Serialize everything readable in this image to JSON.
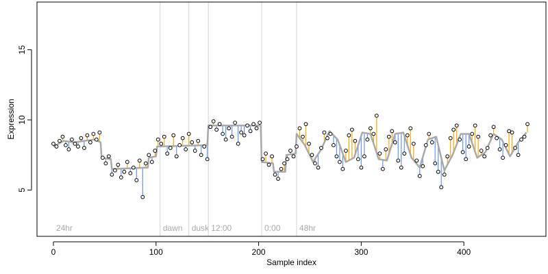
{
  "chart_data": {
    "type": "scatter",
    "title": "",
    "xlabel": "Sample index",
    "ylabel": "Expression",
    "xlim": [
      -16,
      480
    ],
    "ylim": [
      1.7,
      18.4
    ],
    "x_ticks": [
      0,
      100,
      200,
      300,
      400
    ],
    "y_ticks": [
      5,
      10,
      15
    ],
    "grid": false,
    "legend": "none",
    "colors": {
      "points_stroke": "#000000",
      "points_fill": "#ffffff",
      "fit_line": "#a9a9a9",
      "residual_above": "#ffa500",
      "residual_below": "#6495ed",
      "region_line": "#d3d3d3",
      "region_label": "#a9a9a9"
    },
    "regions": [
      {
        "label": "24hr",
        "x": 0
      },
      {
        "label": "dawn",
        "x": 104
      },
      {
        "label": "dusk",
        "x": 132
      },
      {
        "label": "12:00",
        "x": 151
      },
      {
        "label": "0:00",
        "x": 203
      },
      {
        "label": "48hr",
        "x": 237
      }
    ],
    "series": [
      {
        "name": "",
        "note": "fitted (grey line) and observed (open circles) expression per sample index; full per-sample list below",
        "fitted": [
          {
            "x": 0,
            "y": 8.1
          },
          {
            "x": 10,
            "y": 8.5
          },
          {
            "x": 20,
            "y": 8.4
          },
          {
            "x": 30,
            "y": 8.5
          },
          {
            "x": 40,
            "y": 8.6
          },
          {
            "x": 46,
            "y": 8.4
          },
          {
            "x": 47,
            "y": 7.3
          },
          {
            "x": 56,
            "y": 7.2
          },
          {
            "x": 57,
            "y": 6.5
          },
          {
            "x": 92,
            "y": 6.6
          },
          {
            "x": 93,
            "y": 7.3
          },
          {
            "x": 100,
            "y": 7.4
          },
          {
            "x": 101,
            "y": 8.1
          },
          {
            "x": 150,
            "y": 8.2
          },
          {
            "x": 151,
            "y": 9.6
          },
          {
            "x": 202,
            "y": 9.6
          },
          {
            "x": 203,
            "y": 7.0
          },
          {
            "x": 214,
            "y": 6.9
          },
          {
            "x": 215,
            "y": 6.3
          },
          {
            "x": 226,
            "y": 6.3
          },
          {
            "x": 227,
            "y": 7.5
          },
          {
            "x": 236,
            "y": 7.6
          },
          {
            "x": 237,
            "y": 9.0
          },
          {
            "x": 245,
            "y": 8.2
          },
          {
            "x": 253,
            "y": 7.0
          },
          {
            "x": 261,
            "y": 7.9
          },
          {
            "x": 269,
            "y": 9.2
          },
          {
            "x": 277,
            "y": 8.6
          },
          {
            "x": 285,
            "y": 7.0
          },
          {
            "x": 293,
            "y": 7.3
          },
          {
            "x": 301,
            "y": 9.1
          },
          {
            "x": 309,
            "y": 9.0
          },
          {
            "x": 317,
            "y": 7.2
          },
          {
            "x": 325,
            "y": 7.1
          },
          {
            "x": 333,
            "y": 9.0
          },
          {
            "x": 341,
            "y": 9.1
          },
          {
            "x": 349,
            "y": 7.3
          },
          {
            "x": 357,
            "y": 6.6
          },
          {
            "x": 365,
            "y": 8.6
          },
          {
            "x": 373,
            "y": 8.8
          },
          {
            "x": 381,
            "y": 6.4
          },
          {
            "x": 389,
            "y": 7.5
          },
          {
            "x": 397,
            "y": 9.0
          },
          {
            "x": 405,
            "y": 9.0
          },
          {
            "x": 413,
            "y": 7.3
          },
          {
            "x": 421,
            "y": 7.7
          },
          {
            "x": 429,
            "y": 9.0
          },
          {
            "x": 437,
            "y": 8.6
          },
          {
            "x": 445,
            "y": 7.4
          },
          {
            "x": 453,
            "y": 8.4
          },
          {
            "x": 461,
            "y": 9.1
          }
        ],
        "observed": [
          {
            "x": 0,
            "y": 8.3
          },
          {
            "x": 3,
            "y": 8.1
          },
          {
            "x": 6,
            "y": 8.5
          },
          {
            "x": 9,
            "y": 8.8
          },
          {
            "x": 12,
            "y": 8.2
          },
          {
            "x": 15,
            "y": 7.9
          },
          {
            "x": 18,
            "y": 8.6
          },
          {
            "x": 21,
            "y": 8.3
          },
          {
            "x": 24,
            "y": 8.1
          },
          {
            "x": 27,
            "y": 8.7
          },
          {
            "x": 30,
            "y": 8.0
          },
          {
            "x": 33,
            "y": 8.9
          },
          {
            "x": 36,
            "y": 8.4
          },
          {
            "x": 39,
            "y": 9.0
          },
          {
            "x": 42,
            "y": 8.6
          },
          {
            "x": 45,
            "y": 9.1
          },
          {
            "x": 48,
            "y": 7.3
          },
          {
            "x": 51,
            "y": 6.9
          },
          {
            "x": 54,
            "y": 7.4
          },
          {
            "x": 57,
            "y": 6.1
          },
          {
            "x": 60,
            "y": 6.4
          },
          {
            "x": 63,
            "y": 6.8
          },
          {
            "x": 66,
            "y": 5.9
          },
          {
            "x": 69,
            "y": 6.3
          },
          {
            "x": 72,
            "y": 7.0
          },
          {
            "x": 75,
            "y": 6.2
          },
          {
            "x": 78,
            "y": 6.6
          },
          {
            "x": 81,
            "y": 5.7
          },
          {
            "x": 84,
            "y": 7.1
          },
          {
            "x": 87,
            "y": 4.5
          },
          {
            "x": 90,
            "y": 6.9
          },
          {
            "x": 93,
            "y": 7.5
          },
          {
            "x": 96,
            "y": 7.0
          },
          {
            "x": 99,
            "y": 7.8
          },
          {
            "x": 102,
            "y": 8.6
          },
          {
            "x": 105,
            "y": 8.3
          },
          {
            "x": 108,
            "y": 8.8
          },
          {
            "x": 111,
            "y": 7.6
          },
          {
            "x": 114,
            "y": 8.0
          },
          {
            "x": 117,
            "y": 8.9
          },
          {
            "x": 120,
            "y": 7.4
          },
          {
            "x": 123,
            "y": 8.2
          },
          {
            "x": 126,
            "y": 8.7
          },
          {
            "x": 129,
            "y": 7.9
          },
          {
            "x": 132,
            "y": 9.0
          },
          {
            "x": 135,
            "y": 8.4
          },
          {
            "x": 138,
            "y": 7.8
          },
          {
            "x": 141,
            "y": 8.5
          },
          {
            "x": 144,
            "y": 7.5
          },
          {
            "x": 147,
            "y": 8.1
          },
          {
            "x": 150,
            "y": 7.2
          },
          {
            "x": 153,
            "y": 9.5
          },
          {
            "x": 156,
            "y": 9.9
          },
          {
            "x": 159,
            "y": 9.3
          },
          {
            "x": 162,
            "y": 9.7
          },
          {
            "x": 165,
            "y": 9.0
          },
          {
            "x": 168,
            "y": 8.6
          },
          {
            "x": 171,
            "y": 9.4
          },
          {
            "x": 174,
            "y": 8.8
          },
          {
            "x": 177,
            "y": 9.8
          },
          {
            "x": 180,
            "y": 8.3
          },
          {
            "x": 183,
            "y": 9.1
          },
          {
            "x": 186,
            "y": 8.9
          },
          {
            "x": 189,
            "y": 9.6
          },
          {
            "x": 192,
            "y": 9.2
          },
          {
            "x": 195,
            "y": 9.7
          },
          {
            "x": 198,
            "y": 9.4
          },
          {
            "x": 201,
            "y": 9.8
          },
          {
            "x": 204,
            "y": 7.2
          },
          {
            "x": 207,
            "y": 7.6
          },
          {
            "x": 210,
            "y": 6.8
          },
          {
            "x": 213,
            "y": 7.4
          },
          {
            "x": 216,
            "y": 6.1
          },
          {
            "x": 219,
            "y": 5.8
          },
          {
            "x": 222,
            "y": 6.5
          },
          {
            "x": 225,
            "y": 6.9
          },
          {
            "x": 228,
            "y": 7.2
          },
          {
            "x": 231,
            "y": 7.8
          },
          {
            "x": 234,
            "y": 7.4
          },
          {
            "x": 237,
            "y": 8.1
          },
          {
            "x": 240,
            "y": 9.4
          },
          {
            "x": 243,
            "y": 8.8
          },
          {
            "x": 246,
            "y": 9.7
          },
          {
            "x": 249,
            "y": 8.3
          },
          {
            "x": 252,
            "y": 7.5
          },
          {
            "x": 255,
            "y": 6.9
          },
          {
            "x": 258,
            "y": 6.6
          },
          {
            "x": 261,
            "y": 8.0
          },
          {
            "x": 264,
            "y": 9.1
          },
          {
            "x": 267,
            "y": 8.7
          },
          {
            "x": 270,
            "y": 9.0
          },
          {
            "x": 273,
            "y": 8.2
          },
          {
            "x": 276,
            "y": 7.4
          },
          {
            "x": 279,
            "y": 7.0
          },
          {
            "x": 282,
            "y": 6.5
          },
          {
            "x": 285,
            "y": 7.8
          },
          {
            "x": 288,
            "y": 8.9
          },
          {
            "x": 291,
            "y": 9.3
          },
          {
            "x": 294,
            "y": 8.5
          },
          {
            "x": 297,
            "y": 7.2
          },
          {
            "x": 300,
            "y": 6.6
          },
          {
            "x": 303,
            "y": 7.4
          },
          {
            "x": 306,
            "y": 8.6
          },
          {
            "x": 309,
            "y": 9.4
          },
          {
            "x": 312,
            "y": 9.0
          },
          {
            "x": 315,
            "y": 10.3
          },
          {
            "x": 318,
            "y": 7.6
          },
          {
            "x": 321,
            "y": 6.5
          },
          {
            "x": 324,
            "y": 7.9
          },
          {
            "x": 327,
            "y": 8.8
          },
          {
            "x": 330,
            "y": 9.2
          },
          {
            "x": 333,
            "y": 8.4
          },
          {
            "x": 336,
            "y": 7.1
          },
          {
            "x": 339,
            "y": 6.6
          },
          {
            "x": 342,
            "y": 7.6
          },
          {
            "x": 345,
            "y": 8.9
          },
          {
            "x": 348,
            "y": 9.4
          },
          {
            "x": 351,
            "y": 8.3
          },
          {
            "x": 354,
            "y": 7.1
          },
          {
            "x": 357,
            "y": 6.0
          },
          {
            "x": 360,
            "y": 6.7
          },
          {
            "x": 363,
            "y": 8.2
          },
          {
            "x": 366,
            "y": 9.0
          },
          {
            "x": 369,
            "y": 8.4
          },
          {
            "x": 372,
            "y": 6.9
          },
          {
            "x": 375,
            "y": 6.3
          },
          {
            "x": 378,
            "y": 5.2
          },
          {
            "x": 381,
            "y": 6.1
          },
          {
            "x": 384,
            "y": 7.4
          },
          {
            "x": 387,
            "y": 8.7
          },
          {
            "x": 390,
            "y": 9.3
          },
          {
            "x": 393,
            "y": 9.6
          },
          {
            "x": 396,
            "y": 8.6
          },
          {
            "x": 399,
            "y": 7.7
          },
          {
            "x": 402,
            "y": 7.2
          },
          {
            "x": 405,
            "y": 8.1
          },
          {
            "x": 408,
            "y": 9.0
          },
          {
            "x": 411,
            "y": 9.6
          },
          {
            "x": 414,
            "y": 8.8
          },
          {
            "x": 417,
            "y": 7.8
          },
          {
            "x": 420,
            "y": 7.4
          },
          {
            "x": 423,
            "y": 8.0
          },
          {
            "x": 426,
            "y": 8.9
          },
          {
            "x": 429,
            "y": 9.5
          },
          {
            "x": 432,
            "y": 8.7
          },
          {
            "x": 435,
            "y": 7.9
          },
          {
            "x": 438,
            "y": 7.3
          },
          {
            "x": 441,
            "y": 8.2
          },
          {
            "x": 444,
            "y": 9.2
          },
          {
            "x": 447,
            "y": 9.1
          },
          {
            "x": 450,
            "y": 8.0
          },
          {
            "x": 453,
            "y": 7.5
          },
          {
            "x": 456,
            "y": 8.6
          },
          {
            "x": 459,
            "y": 8.8
          },
          {
            "x": 462,
            "y": 9.7
          }
        ]
      }
    ]
  }
}
